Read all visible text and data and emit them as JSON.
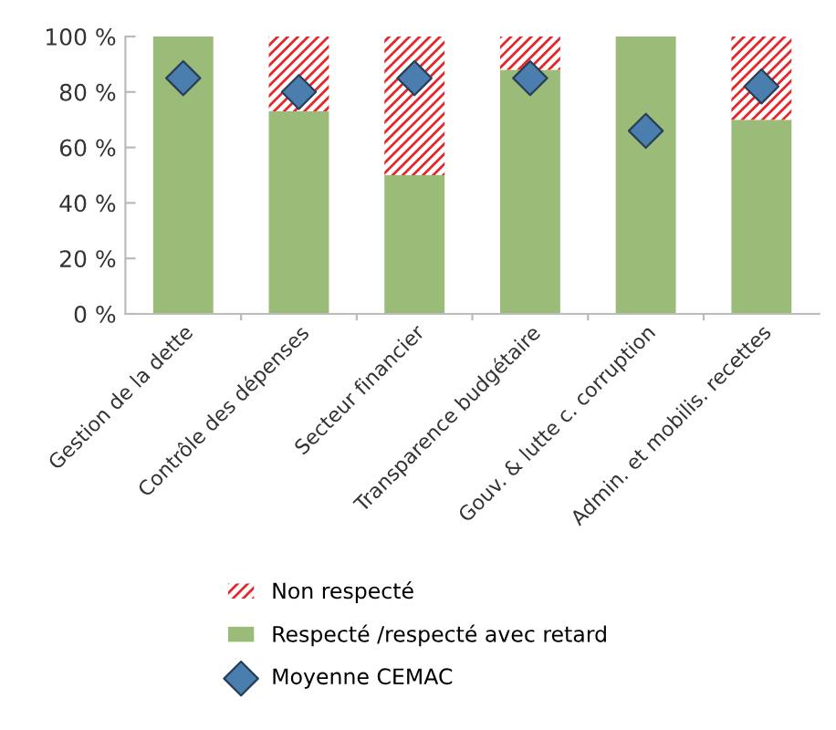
{
  "chart_data": {
    "type": "bar",
    "stacked": true,
    "categories": [
      "Gestion de la dette",
      "Contrôle des dépenses",
      "Secteur financier",
      "Transparence budgétaire",
      "Gouv. & lutte c. corruption",
      "Admin. et mobilis. recettes"
    ],
    "series": [
      {
        "name": "Respecté /respecté avec retard",
        "color": "#9bbb78",
        "values": [
          100,
          73,
          50,
          88,
          100,
          70
        ]
      },
      {
        "name": "Non respecté",
        "color": "#e8262a",
        "values": [
          0,
          27,
          50,
          12,
          0,
          30
        ]
      },
      {
        "name": "Moyenne CEMAC",
        "type": "scatter",
        "color": "#4a7eaf",
        "marker": "diamond",
        "values": [
          85,
          80,
          85,
          85,
          66,
          82
        ]
      }
    ],
    "ylim": [
      0,
      100
    ],
    "yticks": [
      {
        "value": 0,
        "label": "0 %"
      },
      {
        "value": 20,
        "label": "20 %"
      },
      {
        "value": 40,
        "label": "40 %"
      },
      {
        "value": 60,
        "label": "60 %"
      },
      {
        "value": 80,
        "label": "80 %"
      },
      {
        "value": 100,
        "label": "100 %"
      }
    ],
    "grid": false,
    "legend": "bottom"
  }
}
